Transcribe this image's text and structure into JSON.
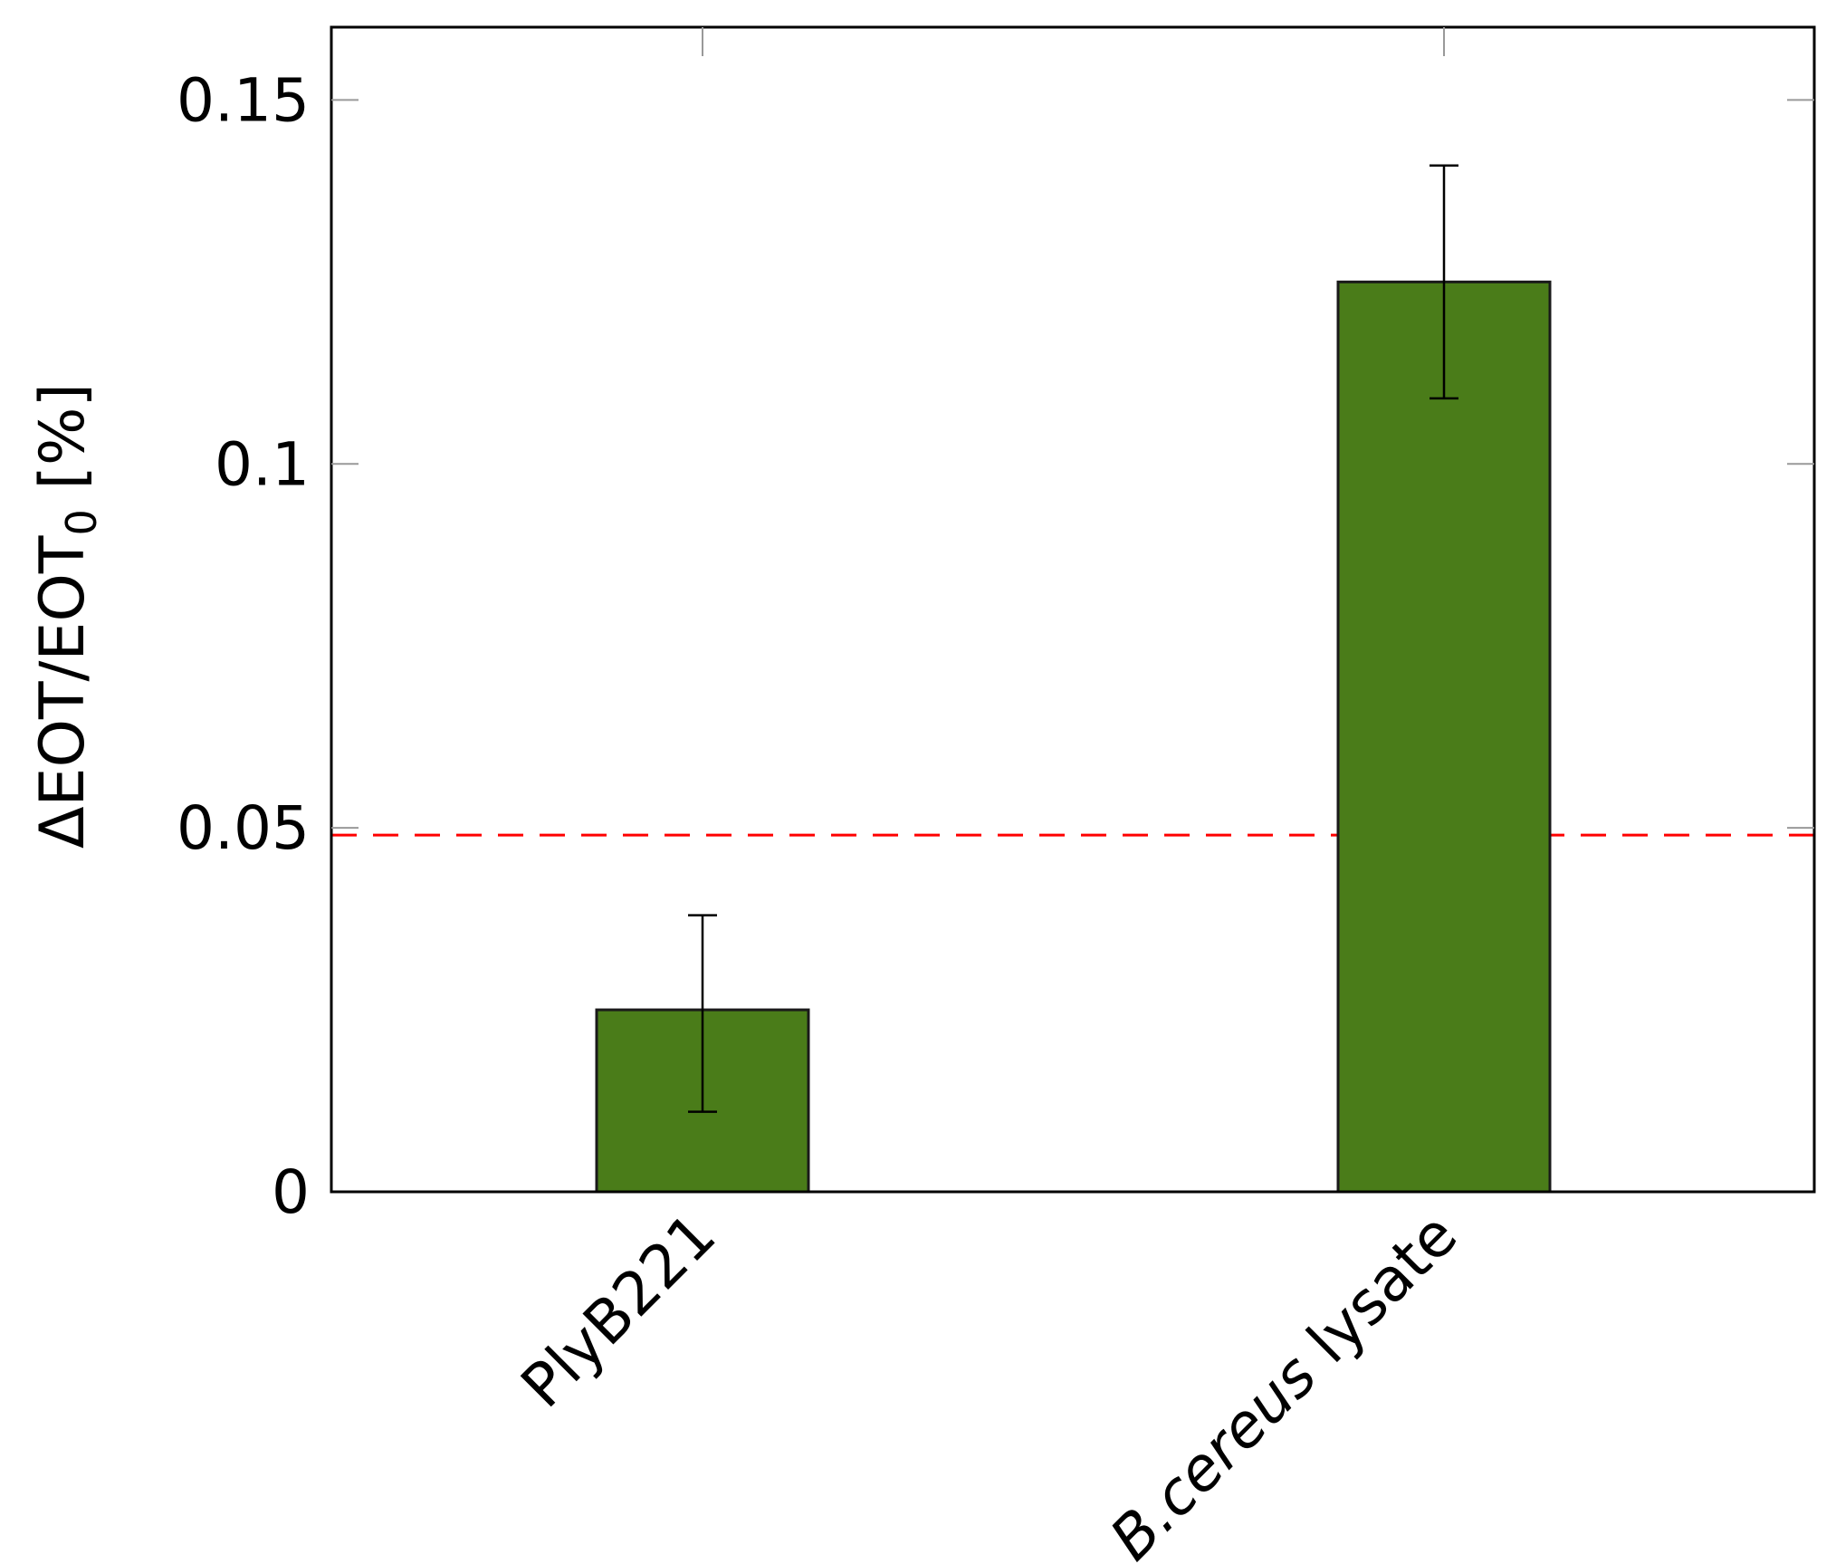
{
  "chart_data": {
    "type": "bar",
    "title": "",
    "xlabel": "",
    "ylabel_parts": {
      "main": "ΔEOT/EOT",
      "subscript": "0",
      "unit": " [%]"
    },
    "categories": [
      {
        "label_italic": "",
        "label": "PlyB221"
      },
      {
        "label_italic": "B.cereus",
        "label": " lysate"
      }
    ],
    "values": [
      0.025,
      0.125
    ],
    "error_low": [
      0.011,
      0.109
    ],
    "error_high": [
      0.038,
      0.141
    ],
    "threshold": {
      "value": 0.049,
      "color": "#ff0000",
      "style": "dashed"
    },
    "ylim": [
      0,
      0.16
    ],
    "yticks": [
      {
        "value": 0,
        "label": "0"
      },
      {
        "value": 0.05,
        "label": "0.05"
      },
      {
        "value": 0.1,
        "label": "0.1"
      },
      {
        "value": 0.15,
        "label": "0.15"
      }
    ],
    "grid": false,
    "colors": {
      "bar_fill": "#4a7c19",
      "bar_stroke": "#1a1a1a",
      "axis": "#000000",
      "tick": "#999999"
    }
  }
}
